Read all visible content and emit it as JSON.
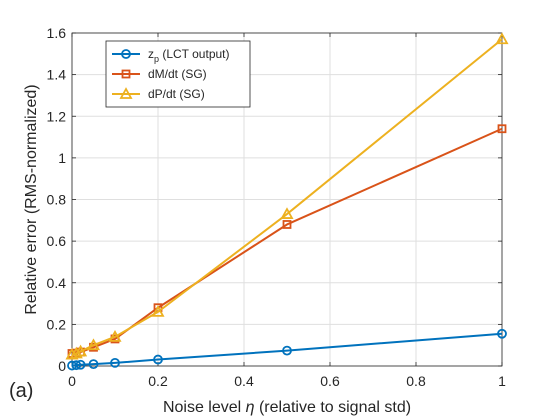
{
  "panel_label": "(a)",
  "chart_data": {
    "type": "line",
    "xlabel_prefix": "Noise level ",
    "xlabel_symbol": "η",
    "xlabel_suffix": " (relative to signal std)",
    "ylabel": "Relative error (RMS-normalized)",
    "xlim": [
      0,
      1
    ],
    "ylim": [
      0,
      1.6
    ],
    "x_ticks": [
      0,
      0.2,
      0.4,
      0.6,
      0.8,
      1
    ],
    "x_tick_labels": [
      "0",
      "0.2",
      "0.4",
      "0.6",
      "0.8",
      "1"
    ],
    "y_ticks": [
      0,
      0.2,
      0.4,
      0.6,
      0.8,
      1,
      1.2,
      1.4,
      1.6
    ],
    "y_tick_labels": [
      "0",
      "0.2",
      "0.4",
      "0.6",
      "0.8",
      "1",
      "1.2",
      "1.4",
      "1.6"
    ],
    "grid": true,
    "legend_position": "top-left",
    "x": [
      0,
      0.01,
      0.02,
      0.05,
      0.1,
      0.2,
      0.5,
      1
    ],
    "series": [
      {
        "name_main": "z",
        "name_sub": "p",
        "name_rest": " (LCT output)",
        "color": "#0072BD",
        "marker": "circle",
        "values": [
          0.002,
          0.004,
          0.006,
          0.009,
          0.015,
          0.031,
          0.074,
          0.155
        ]
      },
      {
        "name_main": "dM/dt (SG)",
        "color": "#D95319",
        "marker": "square",
        "values": [
          0.06,
          0.062,
          0.067,
          0.09,
          0.13,
          0.28,
          0.68,
          1.14
        ]
      },
      {
        "name_main": "dP/dt (SG)",
        "color": "#EDB120",
        "marker": "triangle",
        "values": [
          0.055,
          0.06,
          0.07,
          0.1,
          0.14,
          0.26,
          0.73,
          1.57
        ]
      }
    ]
  }
}
